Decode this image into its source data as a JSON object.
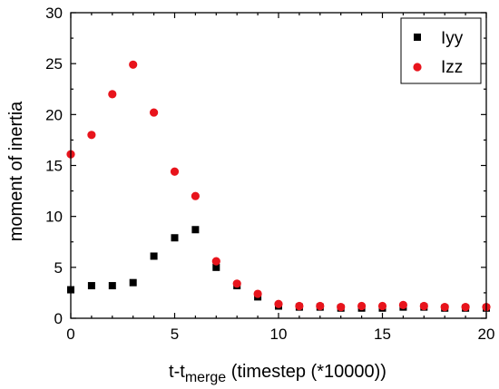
{
  "chart_data": {
    "type": "scatter",
    "xlabel_main": "t-t",
    "xlabel_sub": "merge",
    "xlabel_rest": " (timestep (*10000))",
    "ylabel": "moment of inertia",
    "xlim": [
      0,
      20
    ],
    "ylim": [
      0,
      30
    ],
    "xticks": [
      "0",
      "5",
      "10",
      "15",
      "20"
    ],
    "yticks": [
      "0",
      "5",
      "10",
      "15",
      "20",
      "25",
      "30"
    ],
    "grid": false,
    "legend_position": "top-right",
    "series": [
      {
        "name": "Iyy",
        "marker": "square",
        "color": "#000000",
        "x": [
          0,
          1,
          2,
          3,
          4,
          5,
          6,
          7,
          8,
          9,
          10,
          11,
          12,
          13,
          14,
          15,
          16,
          17,
          18,
          19,
          20
        ],
        "y": [
          2.8,
          3.2,
          3.2,
          3.5,
          6.1,
          7.9,
          8.7,
          5.0,
          3.2,
          2.1,
          1.2,
          1.1,
          1.1,
          1.0,
          1.0,
          1.0,
          1.1,
          1.1,
          1.0,
          1.0,
          1.0
        ]
      },
      {
        "name": "Izz",
        "marker": "circle",
        "color": "#e8141c",
        "x": [
          0,
          1,
          2,
          3,
          4,
          5,
          6,
          7,
          8,
          9,
          10,
          11,
          12,
          13,
          14,
          15,
          16,
          17,
          18,
          19,
          20
        ],
        "y": [
          16.1,
          18.0,
          22.0,
          24.9,
          20.2,
          14.4,
          12.0,
          5.6,
          3.4,
          2.4,
          1.4,
          1.2,
          1.2,
          1.1,
          1.2,
          1.2,
          1.3,
          1.2,
          1.1,
          1.1,
          1.1
        ]
      }
    ]
  }
}
